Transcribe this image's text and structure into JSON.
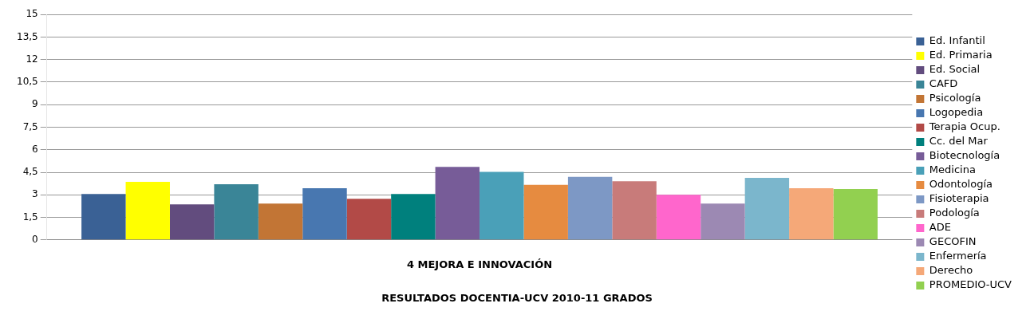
{
  "chart_data": {
    "type": "bar",
    "title": "RESULTADOS DOCENTIA-UCV 2010-11 GRADOS",
    "categories": [
      "4 MEJORA E INNOVACIÓN"
    ],
    "ylim": [
      0,
      15
    ],
    "yticks": [
      0,
      {
        "value": 1.5,
        "label": "1,5"
      },
      3,
      {
        "value": 4.5,
        "label": "4,5"
      },
      6,
      {
        "value": 7.5,
        "label": "7,5"
      },
      9,
      {
        "value": 10.5,
        "label": "10,5"
      },
      12,
      {
        "value": 13.5,
        "label": "13,5"
      },
      15
    ],
    "grid": "y",
    "legend": "right",
    "series": [
      {
        "name": "Ed. Infantil",
        "color": "#3a6195",
        "values": [
          3.05
        ]
      },
      {
        "name": "Ed. Primaria",
        "color": "#ffff00",
        "values": [
          3.87
        ]
      },
      {
        "name": "Ed. Social",
        "color": "#624c7e",
        "values": [
          2.36
        ]
      },
      {
        "name": "CAFD",
        "color": "#3a8597",
        "values": [
          3.7
        ]
      },
      {
        "name": "Psicología",
        "color": "#c27535",
        "values": [
          2.42
        ]
      },
      {
        "name": "Logopedia",
        "color": "#4877b0",
        "values": [
          3.44
        ]
      },
      {
        "name": "Terapia Ocup.",
        "color": "#b24a47",
        "values": [
          2.74
        ]
      },
      {
        "name": "Cc. del Mar",
        "color": "#00807d",
        "values": [
          3.05
        ]
      },
      {
        "name": "Biotecnología",
        "color": "#775c98",
        "values": [
          4.86
        ]
      },
      {
        "name": "Medicina",
        "color": "#4aa0b8",
        "values": [
          4.53
        ]
      },
      {
        "name": "Odontología",
        "color": "#e68b40",
        "values": [
          3.66
        ]
      },
      {
        "name": "Fisioterapia",
        "color": "#7d98c5",
        "values": [
          4.19
        ]
      },
      {
        "name": "Podología",
        "color": "#c87b7a",
        "values": [
          3.91
        ]
      },
      {
        "name": "ADE",
        "color": "#ff66cc",
        "values": [
          3.0
        ]
      },
      {
        "name": "GECOFIN",
        "color": "#9c89b3",
        "values": [
          2.42
        ]
      },
      {
        "name": "Enfermería",
        "color": "#7bb6cc",
        "values": [
          4.13
        ]
      },
      {
        "name": "Derecho",
        "color": "#f5a878",
        "values": [
          3.44
        ]
      },
      {
        "name": "PROMEDIO-UCV",
        "color": "#92d050",
        "values": [
          3.38
        ]
      }
    ]
  }
}
